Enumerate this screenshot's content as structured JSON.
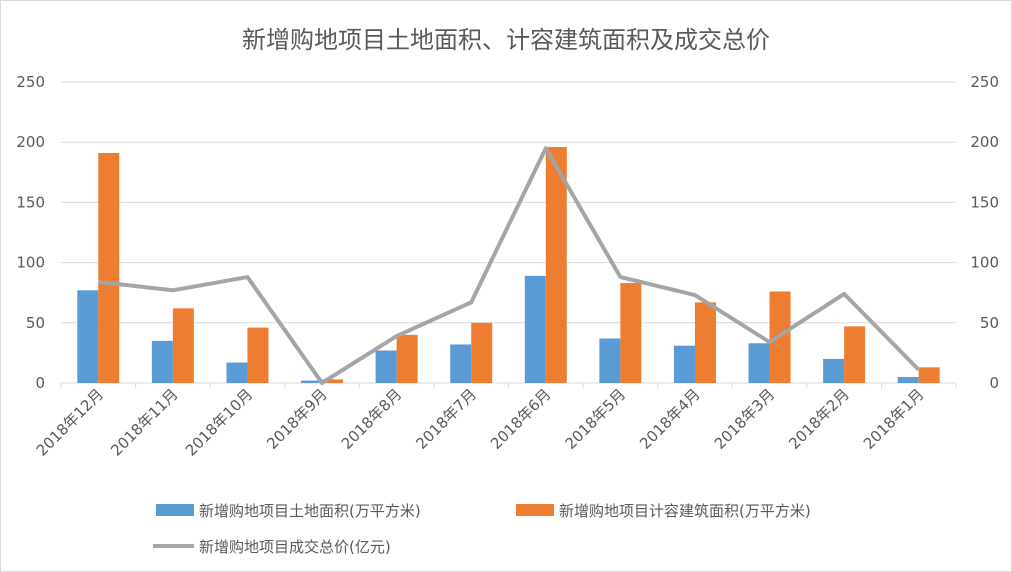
{
  "chart_data": {
    "type": "bar+line",
    "title": "新增购地项目土地面积、计容建筑面积及成交总价",
    "categories": [
      "2018年12月",
      "2018年11月",
      "2018年10月",
      "2018年9月",
      "2018年8月",
      "2018年7月",
      "2018年6月",
      "2018年5月",
      "2018年4月",
      "2018年3月",
      "2018年2月",
      "2018年1月"
    ],
    "series": [
      {
        "name": "新增购地项目土地面积(万平方米)",
        "type": "bar",
        "axis": "left",
        "color": "#5B9BD5",
        "values": [
          77,
          35,
          17,
          2,
          27,
          32,
          89,
          37,
          31,
          33,
          20,
          5
        ]
      },
      {
        "name": "新增购地项目计容建筑面积(万平方米)",
        "type": "bar",
        "axis": "left",
        "color": "#ED7D31",
        "values": [
          191,
          62,
          46,
          3,
          40,
          50,
          196,
          83,
          67,
          76,
          47,
          13
        ]
      },
      {
        "name": "新增购地项目成交总价(亿元)",
        "type": "line",
        "axis": "right",
        "color": "#A5A5A5",
        "values": [
          84,
          77,
          88,
          0,
          39,
          67,
          195,
          88,
          73,
          34,
          74,
          11
        ]
      }
    ],
    "ylim": [
      0,
      250
    ],
    "y2lim": [
      0,
      250
    ],
    "yticks": [
      "0",
      "50",
      "100",
      "150",
      "200",
      "250"
    ],
    "grid": true,
    "legend": "bottom"
  }
}
